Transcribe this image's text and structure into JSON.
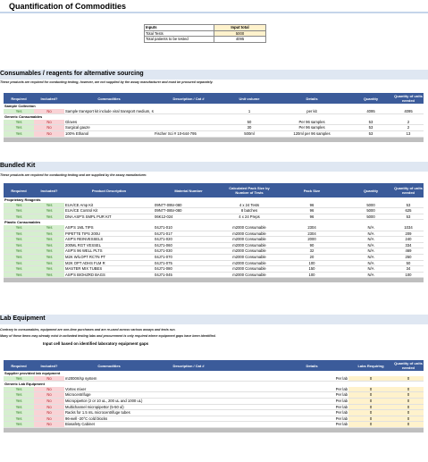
{
  "title": "Quantification of Commodities",
  "inputs": {
    "header_left": "Inputs",
    "header_right": "Input total",
    "rows": [
      {
        "label": "Total Tests",
        "value": "5000"
      },
      {
        "label": "Total patients to be tested",
        "value": "4095"
      }
    ]
  },
  "consumables": {
    "title": "Consumables / reagents for alternative sourcing",
    "subtitle": "These products are required for conducting testing, however, are not supplied by the assay manufacturer and must be procured separately.",
    "headers": [
      "Required",
      "Included?",
      "Commodities",
      "Description / Cat #",
      "Unit volume",
      "Details",
      "Quantity",
      "Quantity of units needed"
    ],
    "groups": [
      {
        "name": "Sample Collection",
        "rows": [
          [
            "Yes",
            "No",
            "Sample transport kit include viral transport medium, star",
            "",
            "1",
            "per kit",
            "4095",
            "4095"
          ]
        ]
      },
      {
        "name": "Generic Consumables",
        "rows": [
          [
            "Yes",
            "No",
            "Gloves",
            "",
            "50",
            "Per 96 samples",
            "53",
            "2"
          ],
          [
            "Yes",
            "No",
            "Surgical gauze",
            "",
            "30",
            "Per 96 samples",
            "53",
            "2"
          ],
          [
            "Yes",
            "No",
            "100% Ethanol",
            "Fischer Sci # 10-644-795",
            "500ml",
            "120ml per 96 samples",
            "53",
            "13"
          ]
        ]
      }
    ]
  },
  "bundled": {
    "title": "Bundled Kit",
    "subtitle": "These products are required for conducting testing and are supplied by the assay manufacturer.",
    "headers": [
      "Required",
      "Included?",
      "Product Description",
      "Material Number",
      "Calculated Pack Size by Number of Tests",
      "Pack Size",
      "Quantity",
      "Quantity of units needed"
    ],
    "groups": [
      {
        "name": "Proprietary Reagents",
        "rows": [
          [
            "Yes",
            "Yes",
            "EUA/CE Amp Kit",
            "09N77-095r-080",
            "4 x 24 Tests",
            "96",
            "5000",
            "53"
          ],
          [
            "Yes",
            "Yes",
            "EUA/CE Control Kit",
            "09N77-085r-080",
            "8 batches",
            "96",
            "5000",
            "625"
          ],
          [
            "Yes",
            "Yes",
            "DNA ASP'S SMPL PUR KIT",
            "06K12-024",
            "4 x 24 Preps",
            "96",
            "5000",
            "53"
          ]
        ]
      },
      {
        "name": "Plastic Consumables",
        "rows": [
          [
            "Yes",
            "Yes",
            "ASP'S 1ML TIPS",
            "04J71-010",
            "m2000 Consumable",
            "2304",
            "N/A",
            "1034"
          ],
          [
            "Yes",
            "Yes",
            "PIPETTE TIPS 200U",
            "04J71-017",
            "m2000 Consumable",
            "2304",
            "N/A",
            "209"
          ],
          [
            "Yes",
            "Yes",
            "ASP'S REINVESSELS",
            "04J71-020",
            "m2000 Consumable",
            "2000",
            "N/A",
            "240"
          ],
          [
            "Yes",
            "Yes",
            "200ML RGT VESSEL",
            "04J71-060",
            "m2000 Consumable",
            "90",
            "N/A",
            "334"
          ],
          [
            "Yes",
            "Yes",
            "ASP'S 96 WELL PLTS",
            "04J71-030",
            "m2000 Consumable",
            "32",
            "N/A",
            "469"
          ],
          [
            "Yes",
            "Yes",
            "M2K W/LOPT RCTN PT",
            "04J71-070",
            "m2000 Consumable",
            "20",
            "N/A",
            "250"
          ],
          [
            "Yes",
            "Yes",
            "M2K OPT ADHS FLM R",
            "04J71-075",
            "m2000 Consumable",
            "100",
            "N/A",
            "50"
          ],
          [
            "Yes",
            "Yes",
            "MASTER MIX TUBES",
            "04J71-080",
            "m2000 Consumable",
            "150",
            "N/A",
            "34"
          ],
          [
            "Yes",
            "Yes",
            "ASP'S BIOHZRD BAGS",
            "04J71-045",
            "m2000 Consumable",
            "100",
            "N/A",
            "100"
          ]
        ]
      }
    ]
  },
  "lab": {
    "title": "Lab Equipment",
    "subtitle1": "Contrary to consumables, equipment are one-time purchases and are re-used across various assays and tests run.",
    "subtitle2": "Many of these items may already exist in activated testing labs and procurement is only required where equipment gaps have been identified.",
    "note": "Input cell based on identified laboratory equipment gaps",
    "headers": [
      "Required",
      "Included?",
      "Commodities",
      "Description / Cat #",
      "",
      "Details",
      "Labs Requiring",
      "Quantity of units needed"
    ],
    "groups": [
      {
        "name": "Supplier provided lab equipment",
        "rows": [
          [
            "Yes",
            "No",
            "m2000rt/sp system",
            "",
            "",
            "Per lab",
            "0",
            "0"
          ]
        ]
      },
      {
        "name": "Generic Lab Equipment",
        "rows": [
          [
            "Yes",
            "No",
            "Vortex mixer",
            "",
            "",
            "Per lab",
            "0",
            "0"
          ],
          [
            "Yes",
            "No",
            "Microcentrifuge",
            "",
            "",
            "Per lab",
            "0",
            "0"
          ],
          [
            "Yes",
            "No",
            "Micropipettor (2 or 10 uL, 200 uL and 1000 uL)",
            "",
            "",
            "Per lab",
            "0",
            "0"
          ],
          [
            "Yes",
            "No",
            "Multichannel micropipettor (5-50 ul)",
            "",
            "",
            "Per lab",
            "0",
            "0"
          ],
          [
            "Yes",
            "No",
            "Racks for 1.5 mL microcentrifuge tubes",
            "",
            "",
            "Per lab",
            "0",
            "0"
          ],
          [
            "Yes",
            "No",
            "96-well -20°C cold blocks",
            "",
            "",
            "Per lab",
            "0",
            "0"
          ],
          [
            "Yes",
            "No",
            "Biosafety Cabinet",
            "",
            "",
            "Per lab",
            "0",
            "0"
          ]
        ]
      }
    ]
  }
}
